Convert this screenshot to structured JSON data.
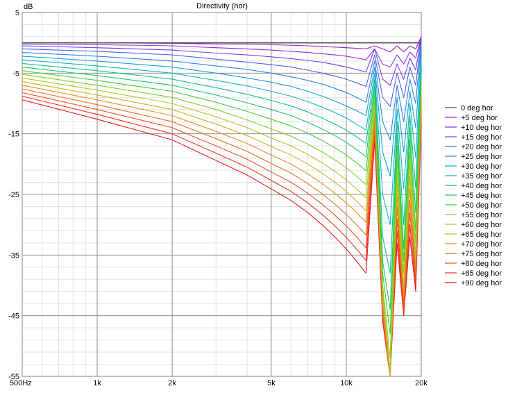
{
  "chart_data": {
    "type": "line",
    "title": "Directivity (hor)",
    "ylabel": "dB",
    "xlabel": "",
    "x_scale": "log",
    "xlim_hz": [
      500,
      20000
    ],
    "ylim": [
      -55,
      5
    ],
    "grid": true,
    "legend_position": "right",
    "x_ticks": [
      {
        "value": 500,
        "label": "500Hz"
      },
      {
        "value": 1000,
        "label": "1k"
      },
      {
        "value": 2000,
        "label": "2k"
      },
      {
        "value": 5000,
        "label": "5k"
      },
      {
        "value": 10000,
        "label": "10k"
      },
      {
        "value": 20000,
        "label": "20k"
      }
    ],
    "y_ticks": [
      {
        "value": 5,
        "label": "5"
      },
      {
        "value": -5,
        "label": "-5"
      },
      {
        "value": -15,
        "label": "-15"
      },
      {
        "value": -25,
        "label": "-25"
      },
      {
        "value": -35,
        "label": "-35"
      },
      {
        "value": -45,
        "label": "-45"
      },
      {
        "value": -55,
        "label": "-55"
      }
    ],
    "x": [
      500,
      1000,
      2000,
      3000,
      4000,
      5000,
      6000,
      7000,
      8000,
      9000,
      10000,
      11000,
      12000,
      13000,
      14000,
      15000,
      16000,
      17000,
      18000,
      19000,
      20000
    ],
    "series": [
      {
        "name": "0 deg hor",
        "color": "#555555",
        "values": [
          0,
          0,
          0,
          0,
          0,
          0,
          0,
          0,
          0,
          0,
          0,
          0,
          0,
          0,
          0,
          0,
          0,
          0,
          0,
          0,
          0
        ]
      },
      {
        "name": "+5 deg hor",
        "color": "#a020c8",
        "values": [
          0,
          0,
          -0.1,
          -0.2,
          -0.2,
          -0.3,
          -0.4,
          -0.5,
          -0.6,
          -0.7,
          -0.8,
          -0.9,
          -1.0,
          -0.5,
          -1.0,
          -1.5,
          -0.5,
          -1.5,
          -0.5,
          -1.0,
          1.0
        ]
      },
      {
        "name": "+10 deg hor",
        "color": "#9030e0",
        "values": [
          -0.2,
          -0.3,
          -0.5,
          -0.8,
          -1.0,
          -1.2,
          -1.4,
          -1.6,
          -1.8,
          -2.0,
          -2.2,
          -2.5,
          -2.8,
          -1.0,
          -3.5,
          -4.0,
          -2.0,
          -3.5,
          -1.5,
          -2.5,
          1.0
        ]
      },
      {
        "name": "+15 deg hor",
        "color": "#7040f0",
        "values": [
          -0.5,
          -0.8,
          -1.2,
          -1.7,
          -2.0,
          -2.3,
          -2.6,
          -2.9,
          -3.2,
          -3.6,
          -4.0,
          -4.4,
          -4.8,
          -1.0,
          -6.0,
          -7.0,
          -3.5,
          -6.0,
          -2.5,
          -4.5,
          1.0
        ]
      },
      {
        "name": "+20 deg hor",
        "color": "#5060f0",
        "values": [
          -1.0,
          -1.4,
          -2.0,
          -2.7,
          -3.2,
          -3.6,
          -4.0,
          -4.5,
          -5.0,
          -5.5,
          -6.0,
          -6.6,
          -7.2,
          -2.0,
          -9.0,
          -10.5,
          -5.0,
          -9.0,
          -4.0,
          -7.0,
          0.5
        ]
      },
      {
        "name": "+25 deg hor",
        "color": "#3080f0",
        "values": [
          -1.6,
          -2.2,
          -3.0,
          -3.8,
          -4.4,
          -5.0,
          -5.6,
          -6.2,
          -6.8,
          -7.5,
          -8.2,
          -9.0,
          -9.8,
          -3.0,
          -13.0,
          -16.0,
          -7.0,
          -13.0,
          -6.0,
          -10.0,
          0.0
        ]
      },
      {
        "name": "+30 deg hor",
        "color": "#10a0e0",
        "values": [
          -2.2,
          -3.0,
          -4.0,
          -5.0,
          -5.8,
          -6.5,
          -7.2,
          -8.0,
          -8.8,
          -9.6,
          -10.4,
          -11.2,
          -12.0,
          -4.0,
          -18.0,
          -22.0,
          -9.0,
          -18.0,
          -8.0,
          -14.0,
          -1.0
        ]
      },
      {
        "name": "+35 deg hor",
        "color": "#10b8c0",
        "values": [
          -2.8,
          -3.8,
          -5.0,
          -6.2,
          -7.1,
          -8.0,
          -8.8,
          -9.7,
          -10.6,
          -11.5,
          -12.4,
          -13.4,
          -14.4,
          -5.0,
          -25.0,
          -30.0,
          -11.0,
          -24.0,
          -10.0,
          -19.0,
          -2.0
        ]
      },
      {
        "name": "+40 deg hor",
        "color": "#10c090",
        "values": [
          -3.4,
          -4.6,
          -6.0,
          -7.4,
          -8.5,
          -9.5,
          -10.4,
          -11.4,
          -12.4,
          -13.4,
          -14.4,
          -15.5,
          -16.6,
          -6.0,
          -32.0,
          -38.0,
          -13.0,
          -30.0,
          -12.0,
          -24.0,
          -3.0
        ]
      },
      {
        "name": "+45 deg hor",
        "color": "#20c860",
        "values": [
          -4.0,
          -5.4,
          -7.0,
          -8.6,
          -9.9,
          -11.0,
          -12.0,
          -13.1,
          -14.2,
          -15.3,
          -16.4,
          -17.6,
          -18.8,
          -7.0,
          -36.0,
          -44.0,
          -15.0,
          -34.0,
          -14.0,
          -28.0,
          -4.0
        ]
      },
      {
        "name": "+50 deg hor",
        "color": "#40d030",
        "values": [
          -4.6,
          -6.2,
          -8.0,
          -9.8,
          -11.3,
          -12.6,
          -13.7,
          -14.9,
          -16.1,
          -17.3,
          -18.5,
          -19.8,
          -21.1,
          -8.0,
          -38.0,
          -48.0,
          -17.0,
          -36.0,
          -16.0,
          -31.0,
          -5.0
        ]
      },
      {
        "name": "+55 deg hor",
        "color": "#80d020",
        "values": [
          -5.2,
          -7.0,
          -9.0,
          -11.0,
          -12.7,
          -14.2,
          -15.4,
          -16.7,
          -18.0,
          -19.3,
          -20.6,
          -22.0,
          -23.4,
          -9.0,
          -40.0,
          -52.0,
          -19.0,
          -38.0,
          -18.0,
          -33.0,
          -6.0
        ]
      },
      {
        "name": "+60 deg hor",
        "color": "#b0c820",
        "values": [
          -5.8,
          -7.8,
          -10.0,
          -12.2,
          -14.0,
          -15.7,
          -17.0,
          -18.4,
          -19.8,
          -21.2,
          -22.6,
          -24.1,
          -25.6,
          -10.0,
          -41.0,
          -54.0,
          -21.0,
          -40.0,
          -20.0,
          -35.0,
          -7.0
        ]
      },
      {
        "name": "+65 deg hor",
        "color": "#d0b020",
        "values": [
          -6.4,
          -8.6,
          -11.0,
          -13.4,
          -15.3,
          -17.1,
          -18.5,
          -20.0,
          -21.5,
          -23.0,
          -24.5,
          -26.1,
          -27.7,
          -11.0,
          -42.0,
          -55.0,
          -23.0,
          -41.0,
          -22.0,
          -36.0,
          -8.0
        ]
      },
      {
        "name": "+70 deg hor",
        "color": "#e09020",
        "values": [
          -7.0,
          -9.4,
          -12.0,
          -14.6,
          -16.6,
          -18.5,
          -20.0,
          -21.6,
          -23.2,
          -24.8,
          -26.4,
          -28.0,
          -29.6,
          -12.0,
          -43.0,
          -55.0,
          -25.0,
          -42.0,
          -24.0,
          -37.0,
          -9.0
        ]
      },
      {
        "name": "+75 deg hor",
        "color": "#e87020",
        "values": [
          -7.6,
          -10.2,
          -13.0,
          -15.8,
          -17.9,
          -19.9,
          -21.5,
          -23.2,
          -24.9,
          -26.6,
          -28.3,
          -30.0,
          -31.7,
          -13.0,
          -44.0,
          -55.0,
          -27.0,
          -43.0,
          -26.0,
          -38.0,
          -10.0
        ]
      },
      {
        "name": "+80 deg hor",
        "color": "#f05020",
        "values": [
          -8.2,
          -11.0,
          -14.0,
          -17.0,
          -19.2,
          -21.3,
          -23.0,
          -24.8,
          -26.6,
          -28.4,
          -30.2,
          -32.0,
          -33.8,
          -14.0,
          -45.0,
          -55.0,
          -29.0,
          -44.0,
          -28.0,
          -39.0,
          -11.0
        ]
      },
      {
        "name": "+85 deg hor",
        "color": "#f03020",
        "values": [
          -8.8,
          -11.8,
          -15.0,
          -18.2,
          -20.5,
          -22.7,
          -24.5,
          -26.4,
          -28.3,
          -30.2,
          -32.1,
          -34.0,
          -35.9,
          -15.0,
          -45.5,
          -55.0,
          -31.0,
          -44.5,
          -30.0,
          -40.0,
          -12.0
        ]
      },
      {
        "name": "+90 deg hor",
        "color": "#e81818",
        "values": [
          -9.4,
          -12.6,
          -16.0,
          -19.4,
          -21.8,
          -24.1,
          -26.0,
          -28.0,
          -30.0,
          -32.0,
          -34.0,
          -36.0,
          -38.0,
          -16.0,
          -46.0,
          -55.0,
          -33.0,
          -45.0,
          -32.0,
          -41.0,
          -13.0
        ]
      }
    ]
  }
}
